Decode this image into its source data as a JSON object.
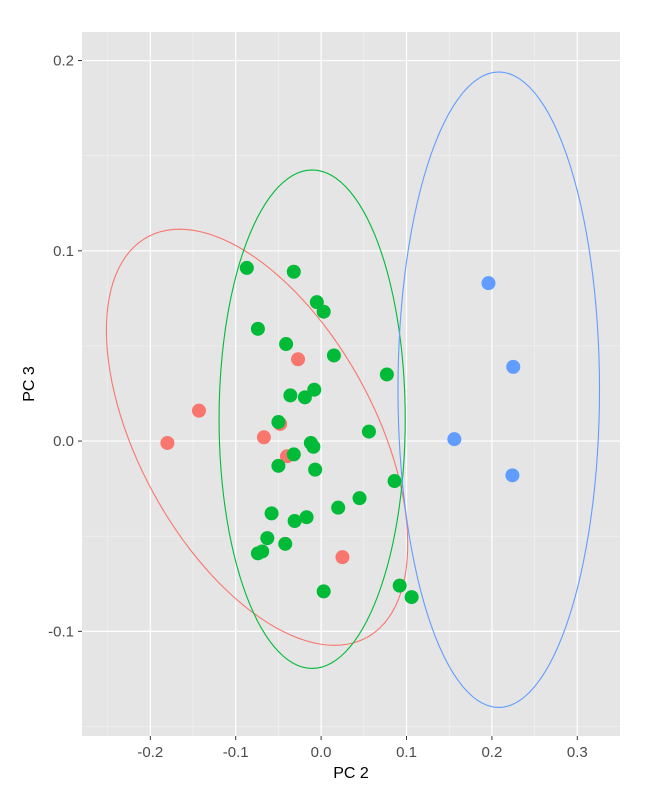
{
  "chart_data": {
    "type": "scatter",
    "title": "",
    "xlabel": "PC 2",
    "ylabel": "PC 3",
    "xlim": [
      -0.28,
      0.35
    ],
    "ylim": [
      -0.155,
      0.215
    ],
    "x_ticks": [
      {
        "value": -0.2,
        "label": "-0.2"
      },
      {
        "value": -0.1,
        "label": "-0.1"
      },
      {
        "value": 0.0,
        "label": "0.0"
      },
      {
        "value": 0.1,
        "label": "0.1"
      },
      {
        "value": 0.2,
        "label": "0.2"
      },
      {
        "value": 0.3,
        "label": "0.3"
      }
    ],
    "y_ticks": [
      {
        "value": -0.1,
        "label": "-0.1"
      },
      {
        "value": 0.0,
        "label": "0.0"
      },
      {
        "value": 0.1,
        "label": "0.1"
      },
      {
        "value": 0.2,
        "label": "0.2"
      }
    ],
    "grid": true,
    "legend": "none",
    "series": [
      {
        "color": "#F8766D",
        "points": [
          {
            "x": -0.18,
            "y": -0.001
          },
          {
            "x": -0.143,
            "y": 0.016
          },
          {
            "x": -0.027,
            "y": 0.043
          },
          {
            "x": -0.067,
            "y": 0.002
          },
          {
            "x": -0.048,
            "y": 0.009
          },
          {
            "x": -0.04,
            "y": -0.008
          },
          {
            "x": 0.025,
            "y": -0.061
          }
        ],
        "ellipse": {
          "cx": -0.075,
          "cy": 0.002,
          "rx": 0.188,
          "ry": 0.088,
          "angle_deg": -23
        }
      },
      {
        "color": "#00BA38",
        "points": [
          {
            "x": -0.087,
            "y": 0.091
          },
          {
            "x": -0.032,
            "y": 0.089
          },
          {
            "x": -0.005,
            "y": 0.073
          },
          {
            "x": 0.003,
            "y": 0.068
          },
          {
            "x": -0.074,
            "y": 0.059
          },
          {
            "x": -0.041,
            "y": 0.051
          },
          {
            "x": 0.015,
            "y": 0.045
          },
          {
            "x": 0.077,
            "y": 0.035
          },
          {
            "x": -0.008,
            "y": 0.027
          },
          {
            "x": -0.036,
            "y": 0.024
          },
          {
            "x": -0.019,
            "y": 0.023
          },
          {
            "x": -0.05,
            "y": 0.01
          },
          {
            "x": 0.056,
            "y": 0.005
          },
          {
            "x": -0.012,
            "y": -0.001
          },
          {
            "x": -0.009,
            "y": -0.003
          },
          {
            "x": -0.032,
            "y": -0.007
          },
          {
            "x": -0.05,
            "y": -0.013
          },
          {
            "x": -0.007,
            "y": -0.015
          },
          {
            "x": 0.086,
            "y": -0.021
          },
          {
            "x": 0.045,
            "y": -0.03
          },
          {
            "x": 0.02,
            "y": -0.035
          },
          {
            "x": -0.058,
            "y": -0.038
          },
          {
            "x": -0.017,
            "y": -0.04
          },
          {
            "x": -0.031,
            "y": -0.042
          },
          {
            "x": -0.063,
            "y": -0.051
          },
          {
            "x": -0.042,
            "y": -0.054
          },
          {
            "x": -0.074,
            "y": -0.059
          },
          {
            "x": -0.069,
            "y": -0.058
          },
          {
            "x": 0.092,
            "y": -0.076
          },
          {
            "x": 0.106,
            "y": -0.082
          },
          {
            "x": 0.003,
            "y": -0.079
          }
        ],
        "ellipse": {
          "cx": -0.0105,
          "cy": 0.0115,
          "rx": 0.109,
          "ry": 0.131,
          "angle_deg": 0
        }
      },
      {
        "color": "#619CFF",
        "points": [
          {
            "x": 0.196,
            "y": 0.083
          },
          {
            "x": 0.225,
            "y": 0.039
          },
          {
            "x": 0.156,
            "y": 0.001
          },
          {
            "x": 0.224,
            "y": -0.018
          }
        ],
        "ellipse": {
          "cx": 0.208,
          "cy": 0.027,
          "rx": 0.118,
          "ry": 0.167,
          "angle_deg": 0
        }
      }
    ]
  }
}
